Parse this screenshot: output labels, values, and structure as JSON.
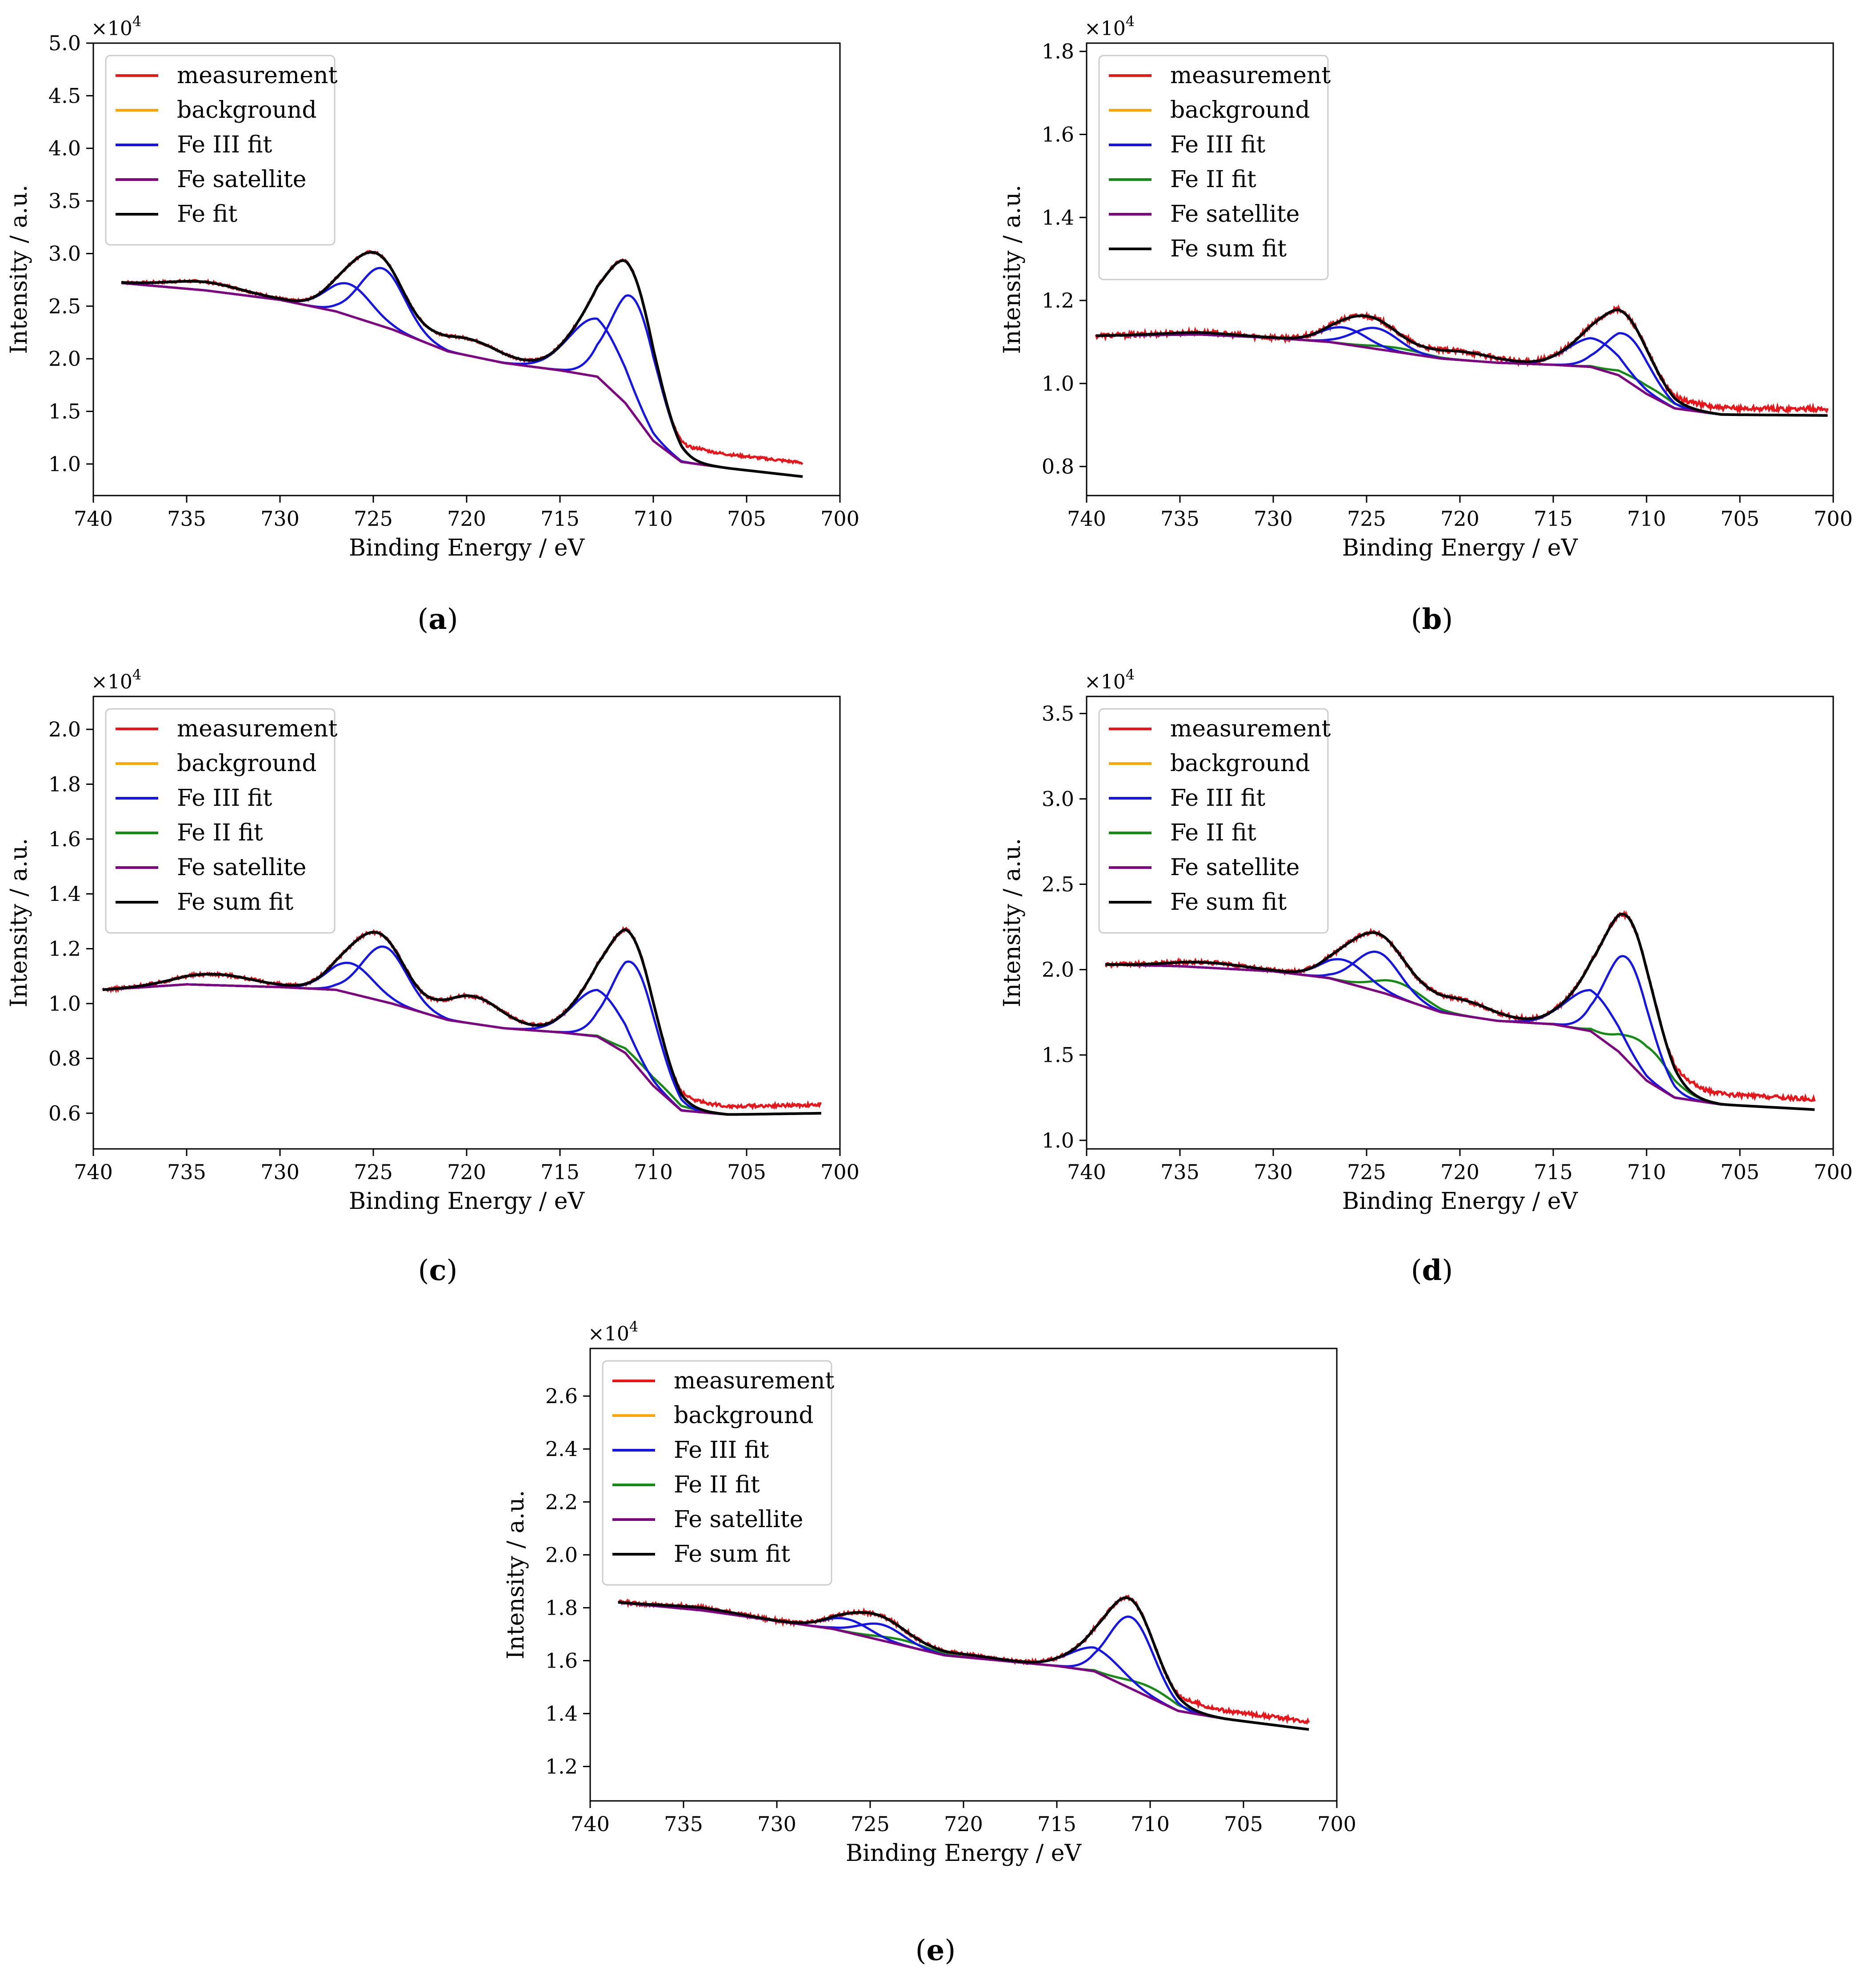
{
  "figure": {
    "panels_meta": [
      {
        "caption_letter": "a",
        "caption": "(a)"
      },
      {
        "caption_letter": "b",
        "caption": "(b)"
      },
      {
        "caption_letter": "c",
        "caption": "(c)"
      },
      {
        "caption_letter": "d",
        "caption": "(d)"
      },
      {
        "caption_letter": "e",
        "caption": "(e)"
      }
    ]
  },
  "chart_data": [
    {
      "type": "line",
      "title": "(a)",
      "xlabel": "Binding Energy / eV",
      "ylabel": "Intensity / a.u.",
      "y_multiplier": "×10^4",
      "xlim": [
        740,
        700
      ],
      "ylim": [
        0.7,
        5.0
      ],
      "xticks": [
        740,
        735,
        730,
        725,
        720,
        715,
        710,
        705,
        700
      ],
      "yticks": [
        1.0,
        1.5,
        2.0,
        2.5,
        3.0,
        3.5,
        4.0,
        4.5,
        5.0
      ],
      "x_range": [
        738.5,
        702
      ],
      "legend_position": "upper-left",
      "legend": [
        "measurement",
        "background",
        "Fe III fit",
        "Fe satellite",
        "Fe fit"
      ],
      "colors": {
        "measurement": "#e8161b",
        "background": "#ffa500",
        "Fe III fit": "#1515e8",
        "Fe II fit": "#158a15",
        "Fe satellite": "#800080",
        "Fe fit": "#000000"
      },
      "model": {
        "noise": 0.012,
        "offset": 0.13,
        "satellite": [
          [
            738.5,
            2.72
          ],
          [
            734,
            2.65
          ],
          [
            730,
            2.56
          ],
          [
            727,
            2.45
          ],
          [
            724,
            2.28
          ],
          [
            721,
            2.07
          ],
          [
            718,
            1.96
          ],
          [
            715,
            1.89
          ],
          [
            713,
            1.83
          ],
          [
            711.5,
            1.58
          ],
          [
            710,
            1.22
          ],
          [
            708.5,
            1.02
          ],
          [
            706,
            0.96
          ],
          [
            702,
            0.88
          ]
        ],
        "fe3": [
          {
            "c": 711.0,
            "a": 1.1,
            "w": 1.25
          },
          {
            "c": 713.0,
            "a": 0.55,
            "w": 1.5
          },
          {
            "c": 724.5,
            "a": 0.55,
            "w": 1.2
          },
          {
            "c": 726.3,
            "a": 0.3,
            "w": 1.2
          }
        ],
        "fe2": [],
        "extra": [
          {
            "c": 734.0,
            "a": 0.08,
            "w": 2.0
          },
          {
            "c": 720.0,
            "a": 0.16,
            "w": 1.8
          }
        ]
      }
    },
    {
      "type": "line",
      "title": "(b)",
      "xlabel": "Binding Energy / eV",
      "ylabel": "Intensity / a.u.",
      "y_multiplier": "×10^4",
      "xlim": [
        740,
        700
      ],
      "ylim": [
        0.73,
        1.82
      ],
      "xticks": [
        740,
        735,
        730,
        725,
        720,
        715,
        710,
        705,
        700
      ],
      "yticks": [
        0.8,
        1.0,
        1.2,
        1.4,
        1.6,
        1.8
      ],
      "x_range": [
        739.5,
        700.3
      ],
      "legend_position": "upper-left",
      "legend": [
        "measurement",
        "background",
        "Fe III fit",
        "Fe II fit",
        "Fe satellite",
        "Fe sum fit"
      ],
      "colors": {
        "measurement": "#e8161b",
        "background": "#ffa500",
        "Fe III fit": "#1515e8",
        "Fe II fit": "#158a15",
        "Fe satellite": "#800080",
        "Fe sum fit": "#000000"
      },
      "model": {
        "noise": 0.006,
        "offset": 0.015,
        "satellite": [
          [
            739.5,
            1.115
          ],
          [
            734,
            1.118
          ],
          [
            730,
            1.11
          ],
          [
            727,
            1.1
          ],
          [
            724,
            1.08
          ],
          [
            721,
            1.06
          ],
          [
            718,
            1.05
          ],
          [
            715,
            1.045
          ],
          [
            713,
            1.04
          ],
          [
            711.5,
            1.02
          ],
          [
            710,
            0.975
          ],
          [
            708.5,
            0.94
          ],
          [
            706,
            0.925
          ],
          [
            700.3,
            0.923
          ]
        ],
        "fe3": [
          {
            "c": 711.0,
            "a": 0.11,
            "w": 1.2
          },
          {
            "c": 712.8,
            "a": 0.07,
            "w": 1.4
          },
          {
            "c": 724.5,
            "a": 0.05,
            "w": 1.2
          },
          {
            "c": 726.2,
            "a": 0.04,
            "w": 1.2
          }
        ],
        "fe2": [
          {
            "c": 710.0,
            "a": 0.02,
            "w": 1.4
          },
          {
            "c": 723.4,
            "a": 0.01,
            "w": 1.4
          }
        ],
        "extra": [
          {
            "c": 720.0,
            "a": 0.02,
            "w": 1.8
          },
          {
            "c": 734.0,
            "a": 0.005,
            "w": 2.0
          }
        ]
      }
    },
    {
      "type": "line",
      "title": "(c)",
      "xlabel": "Binding Energy / eV",
      "ylabel": "Intensity / a.u.",
      "y_multiplier": "×10^4",
      "xlim": [
        740,
        700
      ],
      "ylim": [
        0.47,
        2.12
      ],
      "xticks": [
        740,
        735,
        730,
        725,
        720,
        715,
        710,
        705,
        700
      ],
      "yticks": [
        0.6,
        0.8,
        1.0,
        1.2,
        1.4,
        1.6,
        1.8,
        2.0
      ],
      "x_range": [
        739.5,
        701
      ],
      "legend_position": "upper-left",
      "legend": [
        "measurement",
        "background",
        "Fe III fit",
        "Fe II fit",
        "Fe satellite",
        "Fe sum fit"
      ],
      "colors": {
        "measurement": "#e8161b",
        "background": "#ffa500",
        "Fe III fit": "#1515e8",
        "Fe II fit": "#158a15",
        "Fe satellite": "#800080",
        "Fe sum fit": "#000000"
      },
      "model": {
        "noise": 0.006,
        "offset": 0.03,
        "satellite": [
          [
            739.5,
            1.05
          ],
          [
            735,
            1.07
          ],
          [
            730,
            1.06
          ],
          [
            727,
            1.05
          ],
          [
            724,
            1.0
          ],
          [
            721,
            0.94
          ],
          [
            718,
            0.91
          ],
          [
            715,
            0.895
          ],
          [
            713,
            0.88
          ],
          [
            711.5,
            0.82
          ],
          [
            710,
            0.7
          ],
          [
            708.5,
            0.61
          ],
          [
            706,
            0.595
          ],
          [
            701,
            0.6
          ]
        ],
        "fe3": [
          {
            "c": 711.0,
            "a": 0.36,
            "w": 1.2
          },
          {
            "c": 712.9,
            "a": 0.17,
            "w": 1.4
          },
          {
            "c": 724.4,
            "a": 0.2,
            "w": 1.2
          },
          {
            "c": 726.2,
            "a": 0.11,
            "w": 1.2
          }
        ],
        "fe2": [
          {
            "c": 710.0,
            "a": 0.03,
            "w": 1.4
          }
        ],
        "extra": [
          {
            "c": 733.5,
            "a": 0.04,
            "w": 2.0
          },
          {
            "c": 719.7,
            "a": 0.1,
            "w": 1.6
          }
        ]
      }
    },
    {
      "type": "line",
      "title": "(d)",
      "xlabel": "Binding Energy / eV",
      "ylabel": "Intensity / a.u.",
      "y_multiplier": "×10^4",
      "xlim": [
        740,
        700
      ],
      "ylim": [
        0.95,
        3.6
      ],
      "xticks": [
        740,
        735,
        730,
        725,
        720,
        715,
        710,
        705,
        700
      ],
      "yticks": [
        1.0,
        1.5,
        2.0,
        2.5,
        3.0,
        3.5
      ],
      "x_range": [
        739,
        701
      ],
      "legend_position": "upper-left",
      "legend": [
        "measurement",
        "background",
        "Fe III fit",
        "Fe II fit",
        "Fe satellite",
        "Fe sum fit"
      ],
      "colors": {
        "measurement": "#e8161b",
        "background": "#ffa500",
        "Fe III fit": "#1515e8",
        "Fe II fit": "#158a15",
        "Fe satellite": "#800080",
        "Fe sum fit": "#000000"
      },
      "model": {
        "noise": 0.012,
        "offset": 0.06,
        "satellite": [
          [
            739,
            2.03
          ],
          [
            735,
            2.02
          ],
          [
            730,
            1.99
          ],
          [
            727,
            1.95
          ],
          [
            724,
            1.86
          ],
          [
            721,
            1.75
          ],
          [
            718,
            1.7
          ],
          [
            715,
            1.68
          ],
          [
            713,
            1.64
          ],
          [
            711.5,
            1.52
          ],
          [
            710,
            1.35
          ],
          [
            708.5,
            1.25
          ],
          [
            706,
            1.21
          ],
          [
            701,
            1.18
          ]
        ],
        "fe3": [
          {
            "c": 711.0,
            "a": 0.6,
            "w": 1.2
          },
          {
            "c": 712.9,
            "a": 0.24,
            "w": 1.4
          },
          {
            "c": 724.4,
            "a": 0.23,
            "w": 1.2
          },
          {
            "c": 726.2,
            "a": 0.13,
            "w": 1.2
          }
        ],
        "fe2": [
          {
            "c": 710.0,
            "a": 0.2,
            "w": 1.3
          },
          {
            "c": 723.3,
            "a": 0.09,
            "w": 1.3
          }
        ],
        "extra": [
          {
            "c": 733.5,
            "a": 0.03,
            "w": 2.0
          },
          {
            "c": 720.0,
            "a": 0.09,
            "w": 1.8
          }
        ]
      }
    },
    {
      "type": "line",
      "title": "(e)",
      "xlabel": "Binding Energy / eV",
      "ylabel": "Intensity / a.u.",
      "y_multiplier": "×10^4",
      "xlim": [
        740,
        700
      ],
      "ylim": [
        1.07,
        2.78
      ],
      "xticks": [
        740,
        735,
        730,
        725,
        720,
        715,
        710,
        705,
        700
      ],
      "yticks": [
        1.2,
        1.4,
        1.6,
        1.8,
        2.0,
        2.2,
        2.4,
        2.6
      ],
      "x_range": [
        738.5,
        701.5
      ],
      "legend_position": "upper-left",
      "legend": [
        "measurement",
        "background",
        "Fe III fit",
        "Fe II fit",
        "Fe satellite",
        "Fe sum fit"
      ],
      "colors": {
        "measurement": "#e8161b",
        "background": "#ffa500",
        "Fe III fit": "#1515e8",
        "Fe II fit": "#158a15",
        "Fe satellite": "#800080",
        "Fe sum fit": "#000000"
      },
      "model": {
        "noise": 0.007,
        "offset": 0.03,
        "satellite": [
          [
            738.5,
            1.82
          ],
          [
            734,
            1.79
          ],
          [
            730,
            1.75
          ],
          [
            727,
            1.72
          ],
          [
            724,
            1.67
          ],
          [
            721,
            1.62
          ],
          [
            718,
            1.6
          ],
          [
            715,
            1.58
          ],
          [
            713,
            1.56
          ],
          [
            711.5,
            1.51
          ],
          [
            710,
            1.46
          ],
          [
            708.5,
            1.41
          ],
          [
            706,
            1.38
          ],
          [
            701.5,
            1.34
          ]
        ],
        "fe3": [
          {
            "c": 711.0,
            "a": 0.27,
            "w": 1.2
          },
          {
            "c": 712.9,
            "a": 0.09,
            "w": 1.4
          },
          {
            "c": 724.4,
            "a": 0.06,
            "w": 1.2
          },
          {
            "c": 726.2,
            "a": 0.05,
            "w": 1.2
          }
        ],
        "fe2": [
          {
            "c": 710.0,
            "a": 0.04,
            "w": 1.4
          },
          {
            "c": 723.3,
            "a": 0.02,
            "w": 1.4
          }
        ],
        "extra": [
          {
            "c": 734.0,
            "a": 0.01,
            "w": 2.0
          },
          {
            "c": 720.0,
            "a": 0.01,
            "w": 1.8
          }
        ]
      }
    }
  ]
}
